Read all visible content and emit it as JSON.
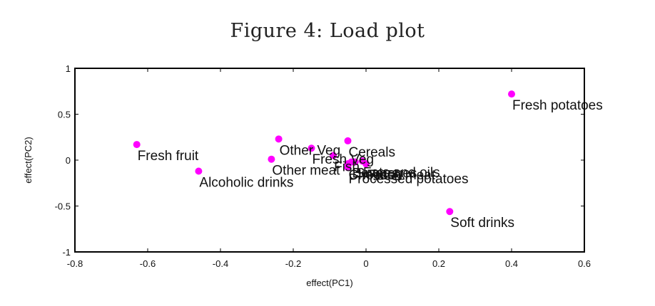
{
  "chart_data": {
    "type": "scatter",
    "title": "Figure 4: Load plot",
    "xlabel": "effect(PC1)",
    "ylabel": "effect(PC2)",
    "xlim": [
      -0.8,
      0.6
    ],
    "ylim": [
      -1,
      1
    ],
    "xticks": [
      "-0.8",
      "-0.6",
      "-0.4",
      "-0.2",
      "0",
      "0.2",
      "0.4",
      "0.6"
    ],
    "yticks": [
      "1",
      "0.5",
      "0",
      "-0.5",
      "-1"
    ],
    "grid": false,
    "marker_color": "#ff00ff",
    "points": [
      {
        "label": "Fresh potatoes",
        "x": 0.4,
        "y": 0.72
      },
      {
        "label": "Fresh fruit",
        "x": -0.63,
        "y": 0.17
      },
      {
        "label": "Alcoholic drinks",
        "x": -0.46,
        "y": -0.12
      },
      {
        "label": "Other Veg",
        "x": -0.24,
        "y": 0.23
      },
      {
        "label": "Other meat",
        "x": -0.26,
        "y": 0.01
      },
      {
        "label": "Fresh Veg",
        "x": -0.15,
        "y": 0.13
      },
      {
        "label": "Cereals",
        "x": -0.05,
        "y": 0.21
      },
      {
        "label": "Fats and oils",
        "x": -0.01,
        "y": -0.01
      },
      {
        "label": "Fish",
        "x": -0.09,
        "y": 0.05
      },
      {
        "label": "Sugars",
        "x": -0.03,
        "y": -0.02
      },
      {
        "label": "Fresh meat",
        "x": 0.0,
        "y": -0.04
      },
      {
        "label": "Cheese",
        "x": -0.05,
        "y": -0.04
      },
      {
        "label": "Beverages",
        "x": -0.04,
        "y": -0.02
      },
      {
        "label": "Processed potatoes",
        "x": -0.05,
        "y": -0.08
      },
      {
        "label": "Soft drinks",
        "x": 0.23,
        "y": -0.56
      }
    ]
  }
}
